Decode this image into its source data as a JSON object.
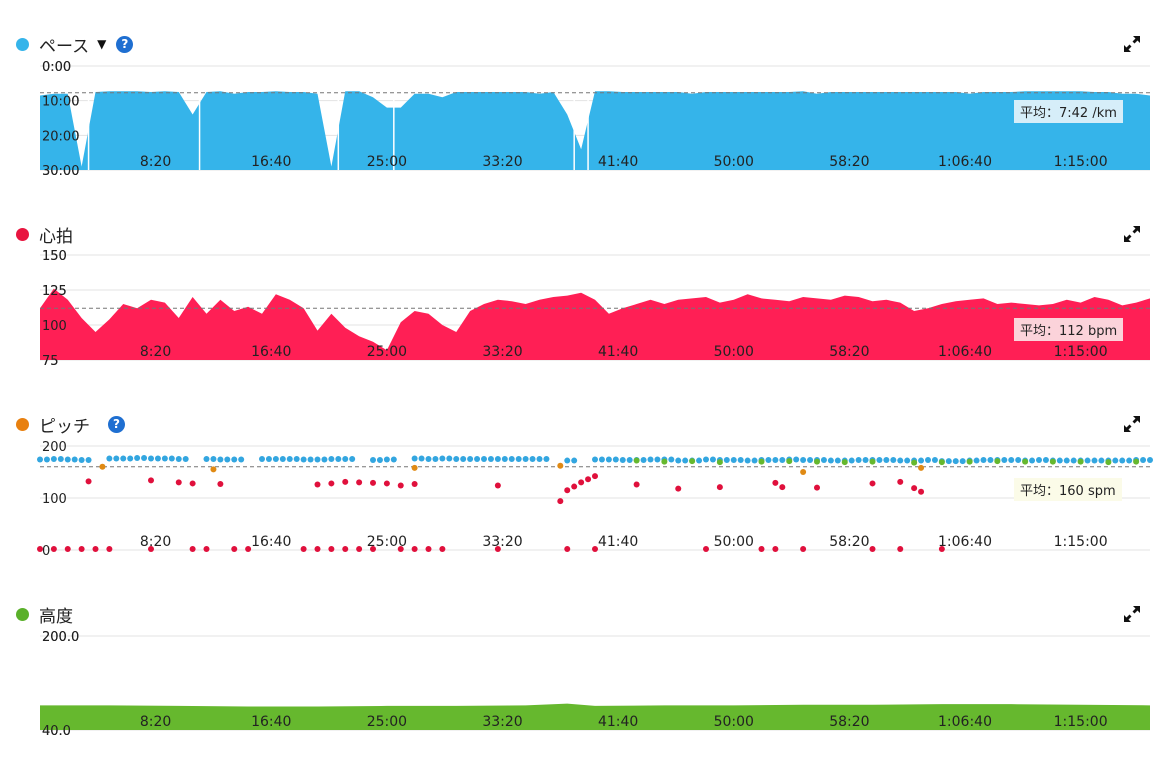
{
  "x_ticks": [
    "8:20",
    "16:40",
    "25:00",
    "33:20",
    "41:40",
    "50:00",
    "58:20",
    "1:06:40",
    "1:15:00"
  ],
  "colors": {
    "pace": "#35b4ea",
    "heart": "#ff1f55",
    "cadence_dot": "#f08a14",
    "altitude": "#66b82e",
    "cad_blue": "#33a6e0",
    "cad_green": "#66b82e",
    "cad_red": "#e0103c",
    "cad_orange": "#e08a14",
    "help": "#1f6fd1"
  },
  "panels": {
    "pace": {
      "title": "ペース",
      "help": "?",
      "avg_label": "平均：7:42 /km",
      "dropdown": "▼"
    },
    "heart": {
      "title": "心拍",
      "avg_label": "平均：112 bpm"
    },
    "cadence": {
      "title": "ピッチ",
      "help": "?",
      "avg_label": "平均：160 spm"
    },
    "altitude": {
      "title": "高度"
    }
  },
  "chart_data": [
    {
      "type": "area",
      "title": "ペース",
      "y_ticks": [
        "0:00",
        "10:00",
        "20:00",
        "30:00"
      ],
      "ylim": [
        0,
        30
      ],
      "y_inverted": true,
      "y_unit": "min/km",
      "average": 7.7,
      "x_minutes": [
        0,
        1,
        2,
        3,
        4,
        5,
        6,
        7,
        8,
        9,
        10,
        11,
        12,
        13,
        14,
        15,
        16,
        17,
        18,
        19,
        20,
        21,
        22,
        23,
        24,
        25,
        26,
        27,
        28,
        29,
        30,
        31,
        32,
        33,
        34,
        35,
        36,
        37,
        38,
        39,
        40,
        41,
        42,
        43,
        44,
        45,
        46,
        47,
        48,
        49,
        50,
        51,
        52,
        53,
        54,
        55,
        56,
        57,
        58,
        59,
        60,
        61,
        62,
        63,
        64,
        65,
        66,
        67,
        68,
        69,
        70,
        71,
        72,
        73,
        74,
        75,
        76,
        77,
        78,
        79,
        80
      ],
      "values": [
        8.5,
        8,
        8,
        29,
        7.5,
        7.3,
        7.3,
        7.3,
        7.5,
        7.3,
        7.5,
        14,
        7.5,
        7.3,
        8,
        7.5,
        7.5,
        7.3,
        7.5,
        7.5,
        8,
        29,
        7.3,
        7.3,
        9,
        12,
        12,
        8,
        8,
        9,
        7.5,
        7.5,
        7.5,
        7.5,
        7.5,
        7.5,
        8,
        7.5,
        14,
        24,
        7.3,
        7.3,
        7.5,
        7.5,
        7.5,
        7.5,
        7.5,
        8,
        7.5,
        7.5,
        7.5,
        7.5,
        7.5,
        7.5,
        7.5,
        7.3,
        8,
        7.5,
        7.5,
        7.5,
        7.5,
        7.5,
        7.5,
        7.5,
        7.5,
        7.5,
        7.5,
        8,
        7.5,
        7.5,
        7.5,
        7.3,
        7.3,
        7.3,
        7.3,
        7.3,
        7.5,
        7.5,
        8,
        8,
        8.5
      ],
      "gaps": [
        3,
        11,
        21,
        25,
        38,
        39
      ]
    },
    {
      "type": "area",
      "title": "心拍",
      "y_ticks": [
        "75",
        "100",
        "125",
        "150"
      ],
      "ylim": [
        75,
        150
      ],
      "y_unit": "bpm",
      "average": 112,
      "x_minutes": [
        0,
        1,
        2,
        3,
        4,
        5,
        6,
        7,
        8,
        9,
        10,
        11,
        12,
        13,
        14,
        15,
        16,
        17,
        18,
        19,
        20,
        21,
        22,
        23,
        24,
        25,
        26,
        27,
        28,
        29,
        30,
        31,
        32,
        33,
        34,
        35,
        36,
        37,
        38,
        39,
        40,
        41,
        42,
        43,
        44,
        45,
        46,
        47,
        48,
        49,
        50,
        51,
        52,
        53,
        54,
        55,
        56,
        57,
        58,
        59,
        60,
        61,
        62,
        63,
        64,
        65,
        66,
        67,
        68,
        69,
        70,
        71,
        72,
        73,
        74,
        75,
        76,
        77,
        78,
        79,
        80
      ],
      "values": [
        112,
        126,
        118,
        105,
        95,
        104,
        115,
        112,
        118,
        116,
        105,
        120,
        108,
        118,
        110,
        113,
        108,
        122,
        118,
        112,
        96,
        108,
        98,
        92,
        88,
        82,
        102,
        110,
        108,
        100,
        95,
        110,
        115,
        118,
        117,
        115,
        118,
        120,
        121,
        123,
        118,
        108,
        112,
        115,
        118,
        115,
        118,
        119,
        120,
        116,
        118,
        122,
        119,
        118,
        117,
        120,
        119,
        118,
        121,
        120,
        117,
        118,
        116,
        110,
        112,
        115,
        117,
        118,
        119,
        115,
        116,
        115,
        114,
        115,
        118,
        116,
        120,
        118,
        114,
        116,
        119
      ]
    },
    {
      "type": "scatter",
      "title": "ピッチ",
      "y_ticks": [
        "0",
        "100",
        "200"
      ],
      "ylim": [
        0,
        200
      ],
      "y_unit": "spm",
      "average": 160,
      "series": [
        {
          "name": "",
          "color_key": "cad_blue",
          "x": [
            0,
            1,
            2,
            3,
            5,
            6,
            7,
            8,
            9,
            10,
            12,
            13,
            14,
            16,
            17,
            18,
            19,
            20,
            21,
            22,
            24,
            25,
            27,
            28,
            29,
            30,
            31,
            32,
            33,
            34,
            35,
            36,
            38,
            40,
            41,
            42,
            43,
            44,
            45,
            46,
            47,
            48,
            49,
            50,
            51,
            52,
            53,
            54,
            55,
            56,
            57,
            58,
            59,
            60,
            61,
            62,
            63,
            64,
            65,
            66,
            67,
            68,
            69,
            70,
            71,
            72,
            73,
            74,
            75,
            76,
            77,
            78,
            79,
            80
          ],
          "y": [
            174,
            175,
            174,
            173,
            176,
            176,
            177,
            176,
            176,
            175,
            175,
            174,
            174,
            175,
            175,
            175,
            174,
            174,
            175,
            175,
            173,
            174,
            176,
            175,
            176,
            175,
            175,
            175,
            175,
            175,
            175,
            175,
            172,
            174,
            174,
            173,
            173,
            174,
            174,
            172,
            172,
            174,
            173,
            173,
            172,
            173,
            173,
            174,
            173,
            173,
            172,
            172,
            173,
            173,
            173,
            172,
            172,
            173,
            171,
            171,
            172,
            173,
            173,
            173,
            172,
            173,
            172,
            172,
            172,
            172,
            172,
            172,
            173,
            173
          ]
        },
        {
          "name": "",
          "color_key": "cad_green",
          "x": [
            43,
            45,
            47,
            49,
            52,
            54,
            56,
            58,
            60,
            63,
            65,
            67,
            69,
            71,
            73,
            75,
            77,
            79
          ],
          "y": [
            172,
            170,
            171,
            169,
            170,
            171,
            170,
            169,
            170,
            168,
            169,
            170,
            171,
            170,
            170,
            170,
            169,
            170
          ]
        },
        {
          "name": "",
          "color_key": "cad_red",
          "x": [
            3.5,
            8,
            10,
            11,
            13,
            20,
            21,
            22,
            23,
            24,
            25,
            26,
            27,
            33,
            37.5,
            38,
            38.5,
            39,
            39.5,
            40,
            43,
            46,
            49,
            53,
            53.5,
            56,
            60,
            62,
            63,
            63.5,
            0,
            1,
            2,
            3,
            4,
            5,
            8,
            11,
            12,
            14,
            15,
            19,
            20,
            21,
            22,
            23,
            24,
            26,
            27,
            28,
            29,
            33,
            38,
            40,
            48,
            52,
            53,
            55,
            60,
            62,
            65
          ],
          "y": [
            132,
            134,
            130,
            128,
            127,
            126,
            128,
            131,
            130,
            129,
            128,
            124,
            127,
            124,
            94,
            115,
            122,
            130,
            136,
            142,
            126,
            118,
            121,
            129,
            121,
            120,
            128,
            131,
            119,
            112,
            2,
            2,
            2,
            2,
            2,
            2,
            2,
            2,
            2,
            2,
            2,
            2,
            2,
            2,
            2,
            2,
            2,
            2,
            2,
            2,
            2,
            2,
            2,
            2,
            2,
            2,
            2,
            2,
            2,
            2,
            2
          ]
        },
        {
          "name": "",
          "color_key": "cad_orange",
          "x": [
            4.5,
            12.5,
            27,
            37.5,
            55,
            63.5
          ],
          "y": [
            160,
            155,
            158,
            162,
            150,
            158
          ]
        }
      ]
    },
    {
      "type": "area",
      "title": "高度",
      "y_ticks": [
        "40.0",
        "200.0"
      ],
      "ylim": [
        40,
        200
      ],
      "x_minutes": [
        0,
        5,
        10,
        15,
        20,
        25,
        30,
        35,
        38,
        40,
        45,
        50,
        55,
        60,
        65,
        70,
        75,
        80
      ],
      "values": [
        82,
        82,
        81,
        80,
        80,
        81,
        81,
        82,
        85,
        81,
        82,
        82,
        83,
        83,
        84,
        84,
        83,
        82
      ]
    }
  ]
}
